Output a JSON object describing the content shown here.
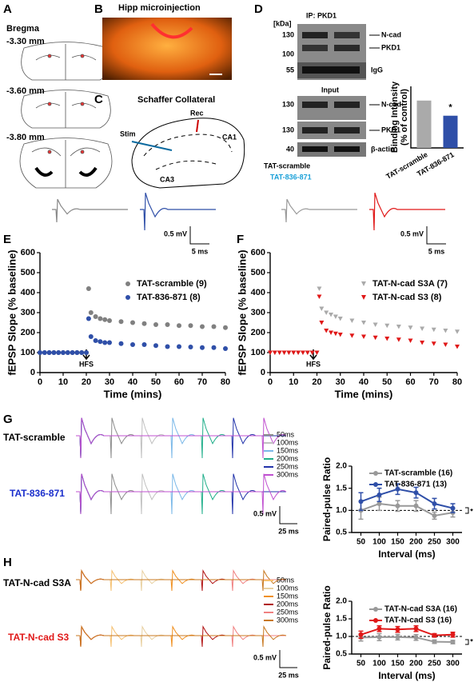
{
  "panel_labels": [
    "A",
    "B",
    "C",
    "D",
    "E",
    "F",
    "G",
    "H"
  ],
  "panel_a": {
    "title": "Bregma",
    "sections": [
      "-3.30 mm",
      "-3.60 mm",
      "-3.80 mm"
    ]
  },
  "panel_b": {
    "title": "Hipp microinjection"
  },
  "panel_c": {
    "title": "Schaffer Collateral",
    "labels": [
      "Stim",
      "Rec",
      "CA1",
      "CA3"
    ]
  },
  "panel_d_blot": {
    "ip_title": "IP: PKD1",
    "unit": "[kDa]",
    "ip_markers": [
      130,
      100,
      55
    ],
    "ip_bands": [
      "N-cad",
      "PKD1"
    ],
    "igg": "IgG",
    "input_title": "Input",
    "input_markers": [
      130,
      130,
      40
    ],
    "input_bands": [
      "N-cad",
      "PKD1",
      "β-actin"
    ],
    "lanes": [
      "TAT-scramble",
      "TAT-836-871"
    ]
  },
  "traces_e": {
    "scale_v": "0.5 mV",
    "scale_t": "5 ms"
  },
  "traces_f": {
    "scale_v": "0.5 mV",
    "scale_t": "5 ms"
  },
  "traces_g": {
    "rows": [
      "TAT-scramble",
      "TAT-836-871"
    ],
    "intervals": [
      {
        "label": "50ms",
        "color": "#8c8c8c"
      },
      {
        "label": "100ms",
        "color": "#c0c0c0"
      },
      {
        "label": "150ms",
        "color": "#7ab8e8"
      },
      {
        "label": "200ms",
        "color": "#1fae8a"
      },
      {
        "label": "250ms",
        "color": "#2233aa"
      },
      {
        "label": "300ms",
        "color": "#c050d0"
      }
    ],
    "scale_v": "0.5 mV",
    "scale_t": "25 ms"
  },
  "traces_h": {
    "rows": [
      "TAT-N-cad S3A",
      "TAT-N-cad S3"
    ],
    "intervals": [
      {
        "label": "50ms",
        "color": "#f5c070"
      },
      {
        "label": "100ms",
        "color": "#e8d0a0"
      },
      {
        "label": "150ms",
        "color": "#f09020"
      },
      {
        "label": "200ms",
        "color": "#b01010"
      },
      {
        "label": "250ms",
        "color": "#f08080"
      },
      {
        "label": "300ms",
        "color": "#c87820"
      }
    ],
    "scale_v": "0.5 mV",
    "scale_t": "25 ms"
  },
  "chart_data": [
    {
      "type": "bar",
      "ylabel": [
        "Binding Intensity",
        "(% of control)"
      ],
      "categories": [
        "TAT-scramble",
        "TAT-836-871"
      ],
      "values": [
        100,
        68
      ],
      "colors": [
        "#aaaaaa",
        "#2f4fa8"
      ],
      "ylim": [
        0,
        130
      ],
      "annotation": "*"
    },
    {
      "type": "line",
      "xlabel": "Time (mins)",
      "ylabel": "fEPSP Slope (% baseline)",
      "annotation": "HFS",
      "connect": false,
      "x": [
        0,
        2,
        4,
        6,
        8,
        10,
        12,
        14,
        16,
        18,
        20,
        21,
        22,
        24,
        26,
        28,
        30,
        35,
        40,
        45,
        50,
        55,
        60,
        65,
        70,
        75,
        80
      ],
      "xlim": [
        0,
        80
      ],
      "xticks": [
        0,
        10,
        20,
        30,
        40,
        50,
        60,
        70,
        80
      ],
      "ylim": [
        0,
        600
      ],
      "yticks": [
        0,
        100,
        200,
        300,
        400,
        500,
        600
      ],
      "series": [
        {
          "name": "TAT-scramble (9)",
          "color": "#808080",
          "marker": "circle",
          "values": [
            100,
            100,
            100,
            100,
            100,
            100,
            100,
            100,
            100,
            100,
            100,
            420,
            300,
            280,
            270,
            265,
            260,
            255,
            250,
            245,
            240,
            240,
            235,
            235,
            230,
            230,
            225
          ]
        },
        {
          "name": "TAT-836-871 (8)",
          "color": "#2f4fa8",
          "marker": "circle",
          "values": [
            100,
            100,
            100,
            100,
            100,
            100,
            100,
            100,
            100,
            100,
            100,
            270,
            180,
            160,
            155,
            150,
            150,
            145,
            140,
            140,
            135,
            130,
            130,
            128,
            125,
            125,
            120
          ]
        }
      ]
    },
    {
      "type": "line",
      "xlabel": "Time (mins)",
      "ylabel": "fEPSP Slope (% baseline)",
      "annotation": "HFS",
      "connect": false,
      "x": [
        0,
        2,
        4,
        6,
        8,
        10,
        12,
        14,
        16,
        18,
        20,
        21,
        22,
        24,
        26,
        28,
        30,
        35,
        40,
        45,
        50,
        55,
        60,
        65,
        70,
        75,
        80
      ],
      "xlim": [
        0,
        80
      ],
      "xticks": [
        0,
        10,
        20,
        30,
        40,
        50,
        60,
        70,
        80
      ],
      "ylim": [
        0,
        600
      ],
      "yticks": [
        0,
        100,
        200,
        300,
        400,
        500,
        600
      ],
      "series": [
        {
          "name": "TAT-N-cad S3A (7)",
          "color": "#aaaaaa",
          "marker": "triangle",
          "values": [
            100,
            100,
            100,
            100,
            100,
            100,
            100,
            100,
            100,
            100,
            100,
            420,
            320,
            300,
            290,
            280,
            270,
            260,
            250,
            240,
            235,
            230,
            225,
            220,
            215,
            210,
            205
          ]
        },
        {
          "name": "TAT-N-cad S3 (8)",
          "color": "#e01818",
          "marker": "triangle",
          "values": [
            100,
            100,
            100,
            100,
            100,
            100,
            100,
            100,
            100,
            100,
            100,
            380,
            250,
            210,
            200,
            195,
            190,
            185,
            180,
            175,
            170,
            165,
            160,
            150,
            145,
            140,
            130
          ]
        }
      ]
    },
    {
      "type": "line",
      "xlabel": "Interval (ms)",
      "ylabel": "Paired-pulse Ratio",
      "annotation": "*",
      "connect": true,
      "hline": 1,
      "x": [
        50,
        100,
        150,
        200,
        250,
        300
      ],
      "xlim": [
        25,
        325
      ],
      "xticks": [
        50,
        100,
        150,
        200,
        250,
        300
      ],
      "ylim": [
        0.5,
        2
      ],
      "yticks": [
        {
          "value": 0.5,
          "label": "0.5"
        },
        {
          "value": 1,
          "label": "1.0"
        },
        {
          "value": 1.5,
          "label": "1.5"
        },
        {
          "value": 2,
          "label": "2.0"
        }
      ],
      "series": [
        {
          "name": "TAT-scramble (16)",
          "color": "#999999",
          "marker": "circle",
          "values": [
            1.0,
            1.15,
            1.1,
            1.1,
            0.88,
            0.95
          ],
          "errors": [
            0.2,
            0.15,
            0.12,
            0.12,
            0.08,
            0.1
          ]
        },
        {
          "name": "TAT-836-871 (13)",
          "color": "#2f4fa8",
          "marker": "circle",
          "values": [
            1.2,
            1.35,
            1.48,
            1.4,
            1.15,
            1.05
          ],
          "errors": [
            0.2,
            0.15,
            0.12,
            0.12,
            0.12,
            0.1
          ]
        }
      ]
    },
    {
      "type": "line",
      "xlabel": "Interval (ms)",
      "ylabel": "Paired-pulse Ratio",
      "annotation": "*",
      "connect": true,
      "hline": 1,
      "x": [
        50,
        100,
        150,
        200,
        250,
        300
      ],
      "xlim": [
        25,
        325
      ],
      "xticks": [
        50,
        100,
        150,
        200,
        250,
        300
      ],
      "ylim": [
        0.5,
        2
      ],
      "yticks": [
        {
          "value": 0.5,
          "label": "0.5"
        },
        {
          "value": 1,
          "label": "1.0"
        },
        {
          "value": 1.5,
          "label": "1.5"
        },
        {
          "value": 2,
          "label": "2.0"
        }
      ],
      "series": [
        {
          "name": "TAT-N-cad S3A (16)",
          "color": "#999999",
          "marker": "circle",
          "values": [
            0.97,
            0.98,
            0.98,
            0.97,
            0.85,
            0.84
          ],
          "errors": [
            0.1,
            0.1,
            0.08,
            0.08,
            0.05,
            0.05
          ]
        },
        {
          "name": "TAT-N-cad S3 (16)",
          "color": "#e01818",
          "marker": "circle",
          "values": [
            1.05,
            1.22,
            1.2,
            1.22,
            1.03,
            1.05
          ],
          "errors": [
            0.1,
            0.08,
            0.08,
            0.08,
            0.05,
            0.07
          ]
        }
      ]
    }
  ]
}
